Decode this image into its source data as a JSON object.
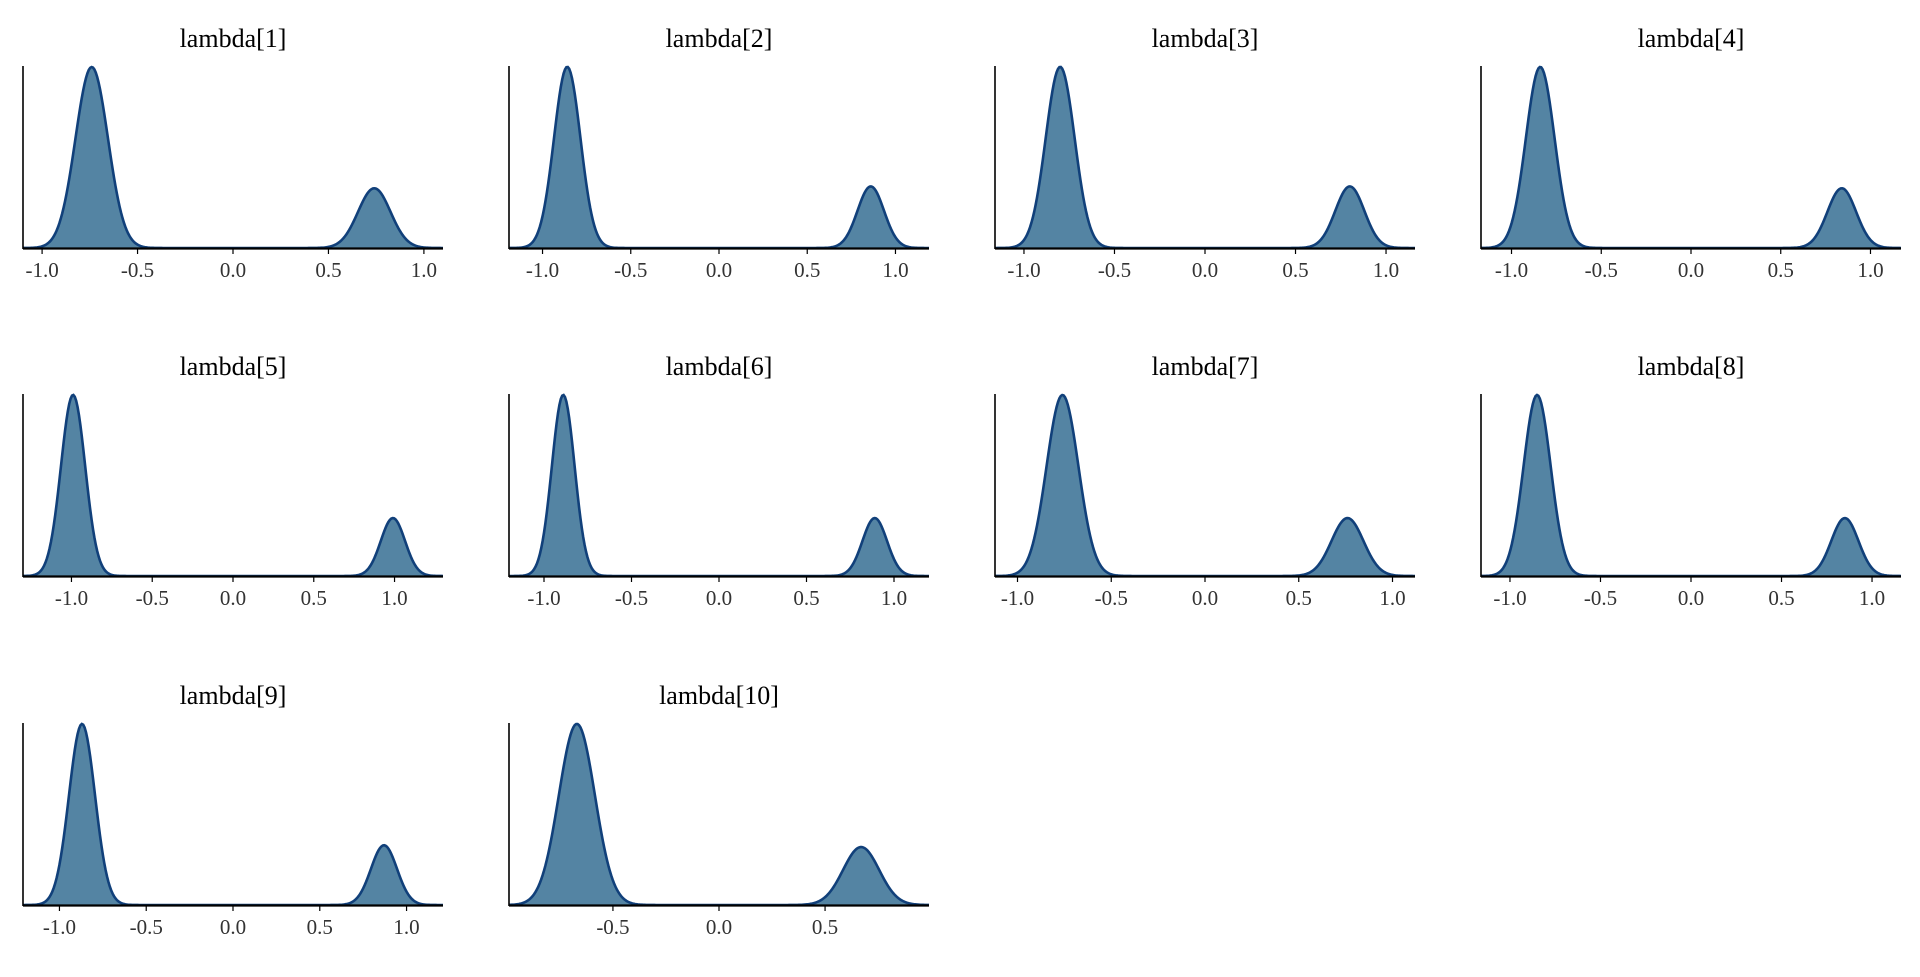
{
  "chart_data": [
    {
      "type": "area",
      "title": "lambda[1]",
      "xlim": [
        -1.1,
        1.1
      ],
      "xticks": [
        "-1.0",
        "-0.5",
        "0.0",
        "0.5",
        "1.0"
      ],
      "peaks": [
        {
          "center": -0.74,
          "sd": 0.085,
          "height": 1.0
        },
        {
          "center": 0.74,
          "sd": 0.085,
          "height": 0.33
        }
      ]
    },
    {
      "type": "area",
      "title": "lambda[2]",
      "xlim": [
        -1.19,
        1.19
      ],
      "xticks": [
        "-1.0",
        "-0.5",
        "0.0",
        "0.5",
        "1.0"
      ],
      "peaks": [
        {
          "center": -0.86,
          "sd": 0.075,
          "height": 1.0
        },
        {
          "center": 0.86,
          "sd": 0.075,
          "height": 0.34
        }
      ]
    },
    {
      "type": "area",
      "title": "lambda[3]",
      "xlim": [
        -1.16,
        1.16
      ],
      "xticks": [
        "-1.0",
        "-0.5",
        "0.0",
        "0.5",
        "1.0"
      ],
      "peaks": [
        {
          "center": -0.8,
          "sd": 0.08,
          "height": 1.0
        },
        {
          "center": 0.8,
          "sd": 0.08,
          "height": 0.34
        }
      ]
    },
    {
      "type": "area",
      "title": "lambda[4]",
      "xlim": [
        -1.17,
        1.17
      ],
      "xticks": [
        "-1.0",
        "-0.5",
        "0.0",
        "0.5",
        "1.0"
      ],
      "peaks": [
        {
          "center": -0.84,
          "sd": 0.08,
          "height": 1.0
        },
        {
          "center": 0.84,
          "sd": 0.08,
          "height": 0.33
        }
      ]
    },
    {
      "type": "area",
      "title": "lambda[5]",
      "xlim": [
        -1.3,
        1.3
      ],
      "xticks": [
        "-1.0",
        "-0.5",
        "0.0",
        "0.5",
        "1.0"
      ],
      "peaks": [
        {
          "center": -0.99,
          "sd": 0.075,
          "height": 1.0
        },
        {
          "center": 0.99,
          "sd": 0.075,
          "height": 0.32
        }
      ]
    },
    {
      "type": "area",
      "title": "lambda[6]",
      "xlim": [
        -1.2,
        1.2
      ],
      "xticks": [
        "-1.0",
        "-0.5",
        "0.0",
        "0.5",
        "1.0"
      ],
      "peaks": [
        {
          "center": -0.89,
          "sd": 0.065,
          "height": 1.0
        },
        {
          "center": 0.89,
          "sd": 0.07,
          "height": 0.32
        }
      ]
    },
    {
      "type": "area",
      "title": "lambda[7]",
      "xlim": [
        -1.12,
        1.12
      ],
      "xticks": [
        "-1.0",
        "-0.5",
        "0.0",
        "0.5",
        "1.0"
      ],
      "peaks": [
        {
          "center": -0.76,
          "sd": 0.085,
          "height": 1.0
        },
        {
          "center": 0.76,
          "sd": 0.085,
          "height": 0.32
        }
      ]
    },
    {
      "type": "area",
      "title": "lambda[8]",
      "xlim": [
        -1.16,
        1.16
      ],
      "xticks": [
        "-1.0",
        "-0.5",
        "0.0",
        "0.5",
        "1.0"
      ],
      "peaks": [
        {
          "center": -0.85,
          "sd": 0.075,
          "height": 1.0
        },
        {
          "center": 0.85,
          "sd": 0.075,
          "height": 0.32
        }
      ]
    },
    {
      "type": "area",
      "title": "lambda[9]",
      "xlim": [
        -1.21,
        1.21
      ],
      "xticks": [
        "-1.0",
        "-0.5",
        "0.0",
        "0.5",
        "1.0"
      ],
      "peaks": [
        {
          "center": -0.87,
          "sd": 0.075,
          "height": 1.0
        },
        {
          "center": 0.87,
          "sd": 0.075,
          "height": 0.33
        }
      ]
    },
    {
      "type": "area",
      "title": "lambda[10]",
      "xlim": [
        -0.99,
        0.99
      ],
      "xticks": [
        "-0.5",
        "0.0",
        "0.5"
      ],
      "peaks": [
        {
          "center": -0.67,
          "sd": 0.085,
          "height": 1.0
        },
        {
          "center": 0.67,
          "sd": 0.085,
          "height": 0.32
        }
      ]
    }
  ],
  "style": {
    "fill_color": "#5484a3",
    "line_color": "#11407a",
    "axis_color": "#000000"
  }
}
